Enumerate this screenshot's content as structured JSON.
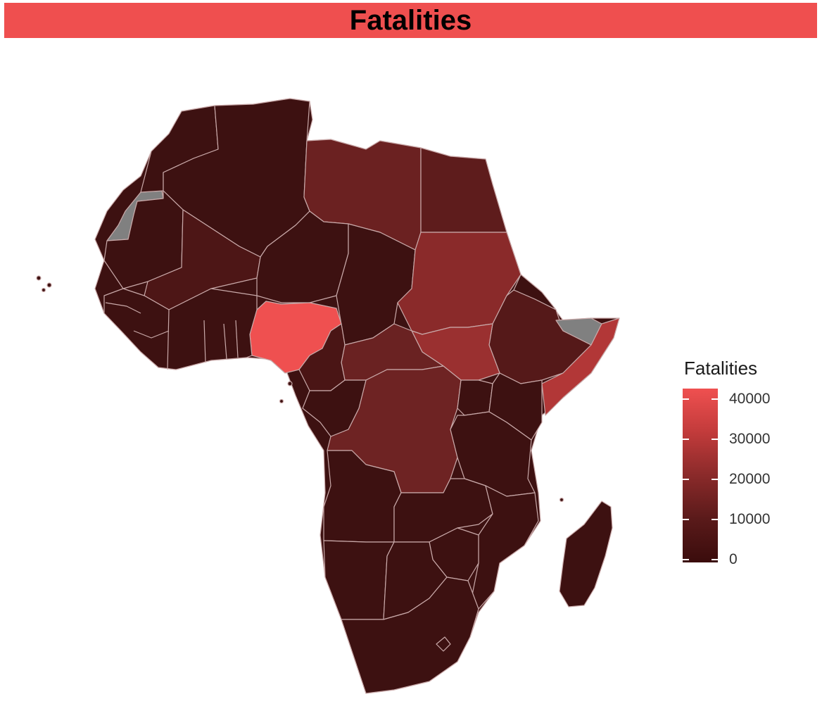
{
  "title": "Fatalities",
  "legend": {
    "title": "Fatalities",
    "ticks": [
      "40000",
      "30000",
      "20000",
      "10000",
      "0"
    ],
    "colors": {
      "low": "#3a0c0c",
      "high": "#ef5050",
      "na": "#808080"
    }
  },
  "chart_data": {
    "type": "choropleth",
    "region": "Africa",
    "variable": "Fatalities",
    "scale_range": [
      0,
      43000
    ],
    "approx_values": {
      "Nigeria": 43000,
      "Somalia": 30000,
      "South Sudan": 25000,
      "Sudan": 23000,
      "DR Congo": 17000,
      "Central African Republic": 13000,
      "Libya": 14000,
      "Egypt": 11000,
      "Ethiopia": 9000,
      "Mali": 7000,
      "Cameroon": 6000,
      "Algeria": 3000,
      "Niger": 3000,
      "Chad": 2000,
      "Kenya": 3000,
      "Uganda": 3000,
      "Burundi": 3000
    },
    "no_data": [
      "Western Sahara",
      "Somaliland"
    ]
  }
}
